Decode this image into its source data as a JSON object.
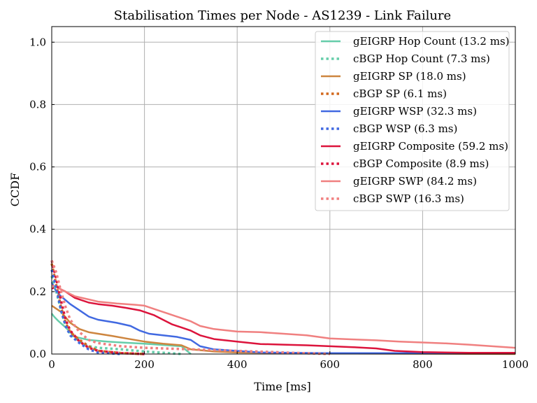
{
  "chart_data": {
    "type": "line",
    "title": "Stabilisation Times per Node - AS1239 - Link Failure",
    "xlabel": "Time [ms]",
    "ylabel": "CCDF",
    "xlim": [
      0,
      1000
    ],
    "ylim": [
      0,
      1.05
    ],
    "x_ticks": [
      0,
      200,
      400,
      600,
      800,
      1000
    ],
    "y_ticks": [
      "0.0",
      "0.2",
      "0.4",
      "0.6",
      "0.8",
      "1.0"
    ],
    "grid": true,
    "legend_position": "top-right",
    "series": [
      {
        "name": "gEIGRP Hop Count (13.2 ms)",
        "color": "#66cdaa",
        "style": "solid",
        "points": [
          [
            0,
            0.13
          ],
          [
            5,
            0.12
          ],
          [
            15,
            0.105
          ],
          [
            30,
            0.085
          ],
          [
            50,
            0.055
          ],
          [
            80,
            0.045
          ],
          [
            120,
            0.04
          ],
          [
            150,
            0.037
          ],
          [
            200,
            0.033
          ],
          [
            250,
            0.028
          ],
          [
            280,
            0.025
          ],
          [
            300,
            0.0
          ]
        ]
      },
      {
        "name": "cBGP Hop Count (7.3 ms)",
        "color": "#66cdaa",
        "style": "dotted",
        "points": [
          [
            0,
            0.25
          ],
          [
            10,
            0.2
          ],
          [
            20,
            0.14
          ],
          [
            30,
            0.09
          ],
          [
            40,
            0.065
          ],
          [
            60,
            0.04
          ],
          [
            80,
            0.025
          ],
          [
            100,
            0.02
          ],
          [
            150,
            0.015
          ],
          [
            200,
            0.008
          ],
          [
            280,
            0.0
          ]
        ]
      },
      {
        "name": "gEIGRP SP (18.0 ms)",
        "color": "#cd853f",
        "style": "solid",
        "points": [
          [
            0,
            0.155
          ],
          [
            5,
            0.15
          ],
          [
            20,
            0.135
          ],
          [
            40,
            0.1
          ],
          [
            60,
            0.08
          ],
          [
            80,
            0.07
          ],
          [
            100,
            0.065
          ],
          [
            130,
            0.058
          ],
          [
            160,
            0.05
          ],
          [
            200,
            0.04
          ],
          [
            240,
            0.033
          ],
          [
            280,
            0.028
          ],
          [
            300,
            0.015
          ],
          [
            350,
            0.008
          ],
          [
            400,
            0.005
          ],
          [
            600,
            0.002
          ],
          [
            1000,
            0.0
          ]
        ]
      },
      {
        "name": "cBGP SP (6.1 ms)",
        "color": "#d2691e",
        "style": "dotted",
        "points": [
          [
            0,
            0.29
          ],
          [
            10,
            0.22
          ],
          [
            20,
            0.15
          ],
          [
            30,
            0.1
          ],
          [
            40,
            0.07
          ],
          [
            60,
            0.045
          ],
          [
            80,
            0.025
          ],
          [
            100,
            0.01
          ],
          [
            150,
            0.003
          ],
          [
            200,
            0.0
          ]
        ]
      },
      {
        "name": "gEIGRP WSP (32.3 ms)",
        "color": "#4169e1",
        "style": "solid",
        "points": [
          [
            0,
            0.23
          ],
          [
            10,
            0.2
          ],
          [
            20,
            0.185
          ],
          [
            40,
            0.16
          ],
          [
            60,
            0.14
          ],
          [
            80,
            0.12
          ],
          [
            100,
            0.11
          ],
          [
            140,
            0.1
          ],
          [
            170,
            0.09
          ],
          [
            190,
            0.075
          ],
          [
            210,
            0.065
          ],
          [
            240,
            0.06
          ],
          [
            270,
            0.055
          ],
          [
            300,
            0.045
          ],
          [
            320,
            0.025
          ],
          [
            350,
            0.015
          ],
          [
            400,
            0.01
          ],
          [
            450,
            0.005
          ],
          [
            600,
            0.003
          ],
          [
            1000,
            0.003
          ]
        ]
      },
      {
        "name": "cBGP WSP (6.3 ms)",
        "color": "#4169e1",
        "style": "dotted",
        "points": [
          [
            0,
            0.27
          ],
          [
            10,
            0.21
          ],
          [
            20,
            0.14
          ],
          [
            30,
            0.09
          ],
          [
            40,
            0.06
          ],
          [
            60,
            0.035
          ],
          [
            80,
            0.015
          ],
          [
            100,
            0.005
          ],
          [
            150,
            0.0
          ]
        ]
      },
      {
        "name": "gEIGRP Composite (59.2 ms)",
        "color": "#dc143c",
        "style": "solid",
        "points": [
          [
            0,
            0.21
          ],
          [
            10,
            0.215
          ],
          [
            30,
            0.2
          ],
          [
            50,
            0.18
          ],
          [
            80,
            0.165
          ],
          [
            100,
            0.16
          ],
          [
            130,
            0.155
          ],
          [
            160,
            0.148
          ],
          [
            190,
            0.14
          ],
          [
            220,
            0.125
          ],
          [
            240,
            0.11
          ],
          [
            260,
            0.095
          ],
          [
            280,
            0.085
          ],
          [
            300,
            0.075
          ],
          [
            320,
            0.06
          ],
          [
            350,
            0.048
          ],
          [
            400,
            0.04
          ],
          [
            450,
            0.032
          ],
          [
            500,
            0.03
          ],
          [
            550,
            0.028
          ],
          [
            600,
            0.025
          ],
          [
            650,
            0.022
          ],
          [
            700,
            0.018
          ],
          [
            740,
            0.01
          ],
          [
            800,
            0.006
          ],
          [
            900,
            0.004
          ],
          [
            1000,
            0.004
          ]
        ]
      },
      {
        "name": "cBGP Composite (8.9 ms)",
        "color": "#dc143c",
        "style": "dotted",
        "points": [
          [
            0,
            0.3
          ],
          [
            10,
            0.24
          ],
          [
            20,
            0.17
          ],
          [
            30,
            0.11
          ],
          [
            40,
            0.075
          ],
          [
            60,
            0.04
          ],
          [
            80,
            0.02
          ],
          [
            100,
            0.01
          ],
          [
            150,
            0.003
          ],
          [
            200,
            0.0
          ]
        ]
      },
      {
        "name": "gEIGRP SWP (84.2 ms)",
        "color": "#f08080",
        "style": "solid",
        "points": [
          [
            0,
            0.22
          ],
          [
            10,
            0.215
          ],
          [
            30,
            0.2
          ],
          [
            50,
            0.185
          ],
          [
            80,
            0.175
          ],
          [
            100,
            0.168
          ],
          [
            140,
            0.162
          ],
          [
            180,
            0.158
          ],
          [
            200,
            0.155
          ],
          [
            220,
            0.145
          ],
          [
            250,
            0.13
          ],
          [
            280,
            0.115
          ],
          [
            300,
            0.105
          ],
          [
            320,
            0.09
          ],
          [
            350,
            0.08
          ],
          [
            400,
            0.072
          ],
          [
            450,
            0.07
          ],
          [
            500,
            0.065
          ],
          [
            550,
            0.06
          ],
          [
            600,
            0.05
          ],
          [
            650,
            0.047
          ],
          [
            700,
            0.044
          ],
          [
            750,
            0.04
          ],
          [
            800,
            0.037
          ],
          [
            850,
            0.034
          ],
          [
            900,
            0.03
          ],
          [
            950,
            0.025
          ],
          [
            1000,
            0.02
          ]
        ]
      },
      {
        "name": "cBGP SWP (16.3 ms)",
        "color": "#f08080",
        "style": "dotted",
        "points": [
          [
            0,
            0.3
          ],
          [
            10,
            0.26
          ],
          [
            20,
            0.2
          ],
          [
            30,
            0.15
          ],
          [
            40,
            0.11
          ],
          [
            60,
            0.07
          ],
          [
            80,
            0.045
          ],
          [
            100,
            0.035
          ],
          [
            150,
            0.025
          ],
          [
            200,
            0.02
          ],
          [
            300,
            0.015
          ],
          [
            400,
            0.01
          ],
          [
            500,
            0.005
          ],
          [
            600,
            0.0
          ]
        ]
      }
    ]
  }
}
